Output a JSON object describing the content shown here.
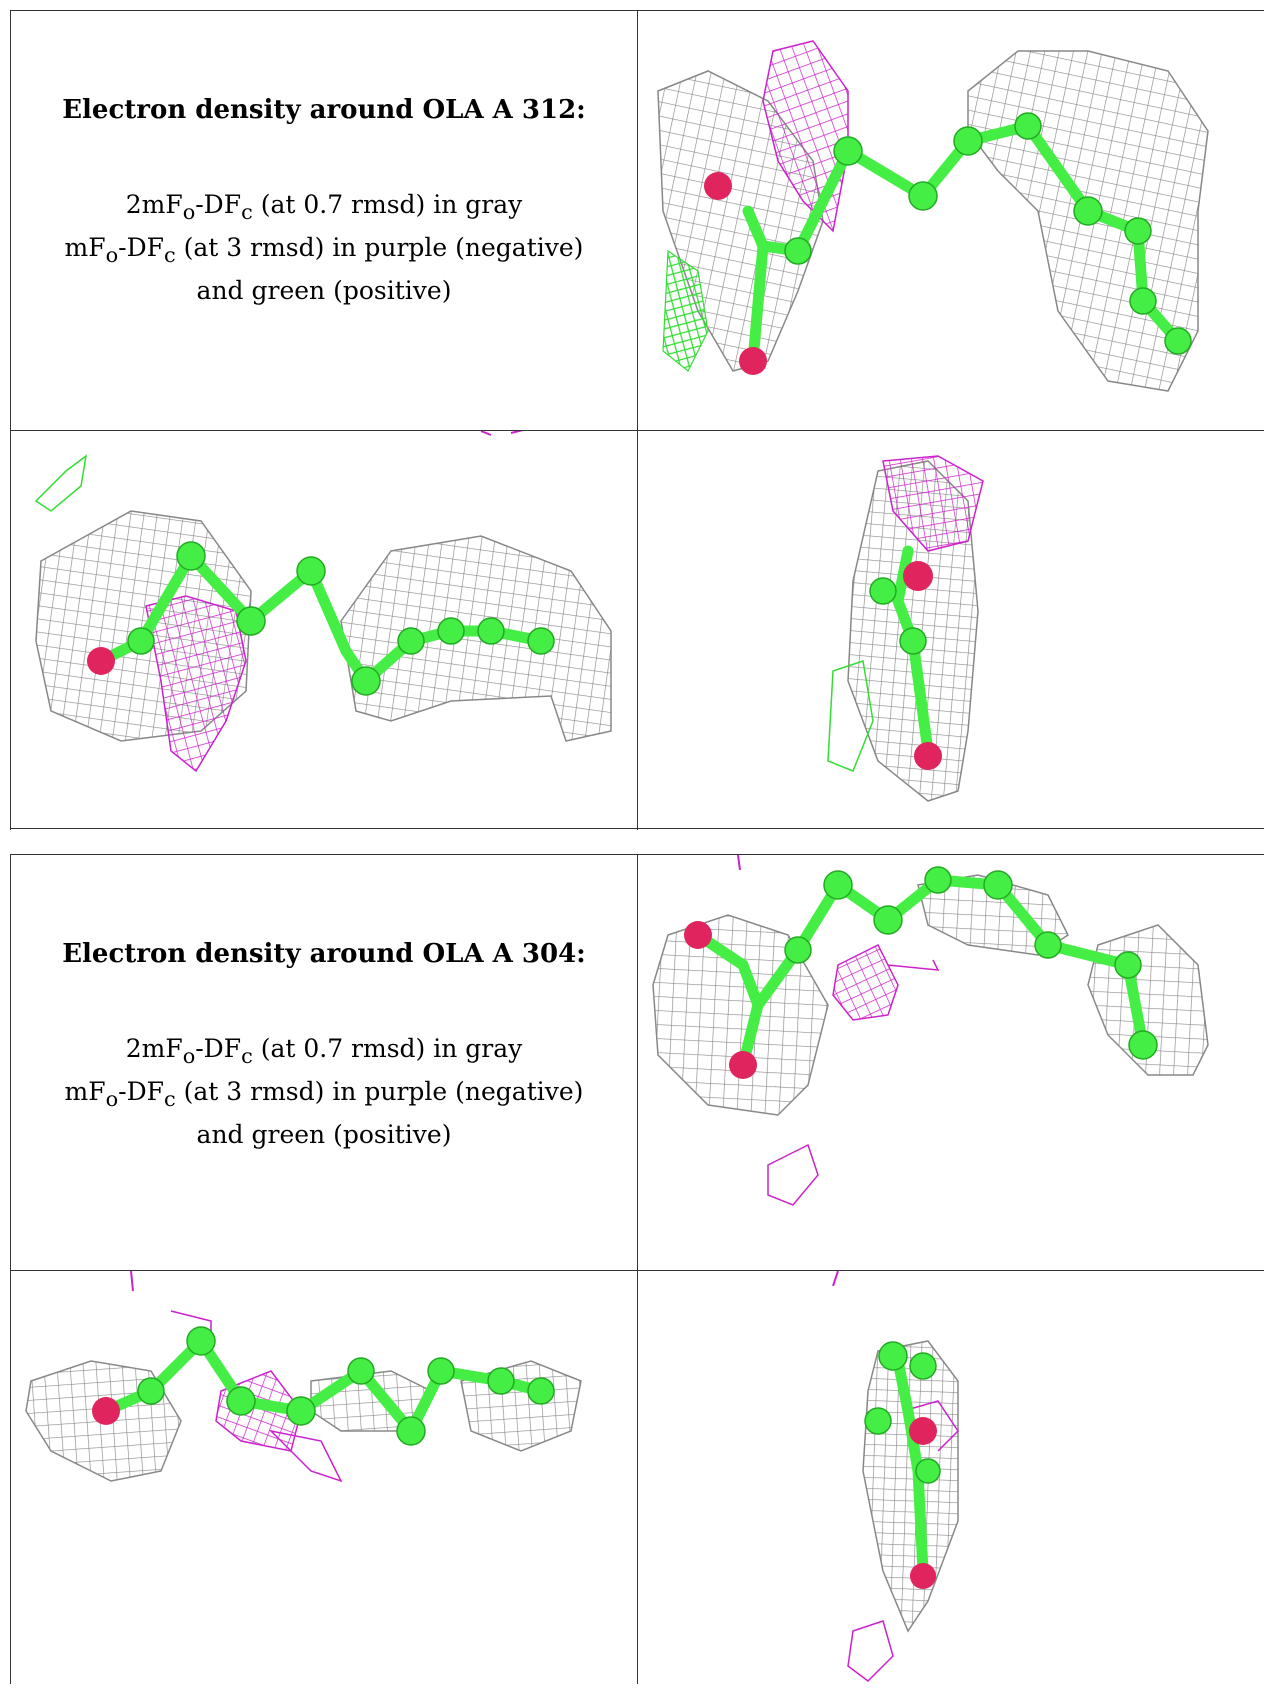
{
  "panels": [
    {
      "title": "Electron density around OLA A 312:",
      "desc_lines": [
        {
          "a": "2mF",
          "a_sub": "o",
          "b": "-DF",
          "b_sub": "c",
          "c": " (at 0.7 rmsd) in gray"
        },
        {
          "a": "mF",
          "a_sub": "o",
          "b": "-DF",
          "b_sub": "c",
          "c": " (at 3 rmsd) in purple (negative)"
        },
        {
          "plain": "and green (positive)"
        }
      ]
    },
    {
      "title": "Electron density around OLA A 304:",
      "desc_lines": [
        {
          "a": "2mF",
          "a_sub": "o",
          "b": "-DF",
          "b_sub": "c",
          "c": " (at 0.7 rmsd) in gray"
        },
        {
          "a": "mF",
          "a_sub": "o",
          "b": "-DF",
          "b_sub": "c",
          "c": " (at 3 rmsd) in purple (negative)"
        },
        {
          "plain": "and green (positive)"
        }
      ]
    }
  ],
  "colors": {
    "mesh_gray": "#8a8a8a",
    "mesh_purple": "#cc22cc",
    "mesh_green": "#33dd33",
    "atom_carbon": "#44ee44",
    "atom_oxygen": "#e0245e",
    "border": "#333333"
  }
}
